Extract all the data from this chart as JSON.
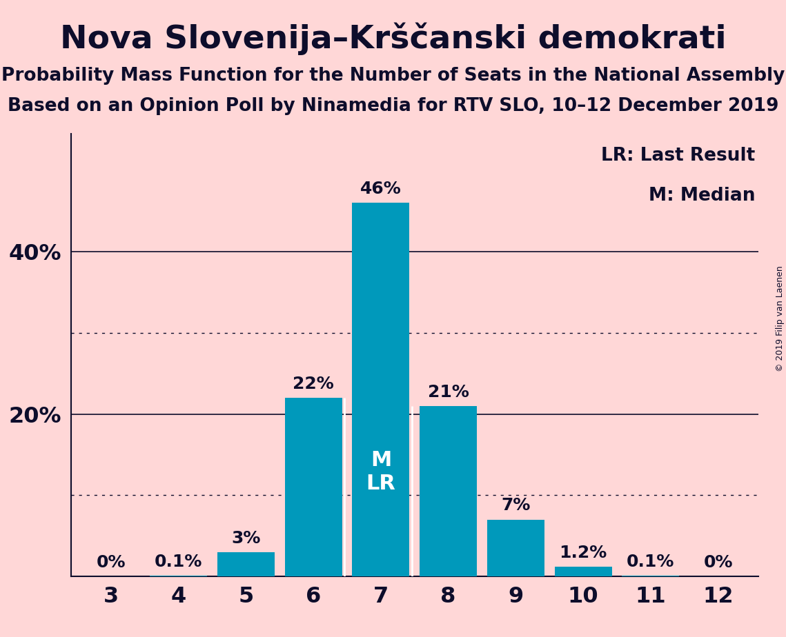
{
  "title": "Nova Slovenija–Krščanski demokrati",
  "subtitle1": "Probability Mass Function for the Number of Seats in the National Assembly",
  "subtitle2": "Based on an Opinion Poll by Ninamedia for RTV SLO, 10–12 December 2019",
  "copyright": "© 2019 Filip van Laenen",
  "seats": [
    3,
    4,
    5,
    6,
    7,
    8,
    9,
    10,
    11,
    12
  ],
  "values": [
    0.0,
    0.001,
    0.03,
    0.22,
    0.46,
    0.21,
    0.07,
    0.012,
    0.001,
    0.0
  ],
  "labels": [
    "0%",
    "0.1%",
    "3%",
    "22%",
    "46%",
    "21%",
    "7%",
    "1.2%",
    "0.1%",
    "0%"
  ],
  "bar_color": "#0099BB",
  "background_color": "#FFD7D7",
  "text_color": "#0d0d2b",
  "median_seat": 7,
  "last_result_seat": 7,
  "solid_gridlines": [
    0.2,
    0.4
  ],
  "dotted_gridlines": [
    0.1,
    0.3
  ],
  "legend_lr": "LR: Last Result",
  "legend_m": "M: Median",
  "title_fontsize": 34,
  "subtitle_fontsize": 19,
  "label_fontsize": 18,
  "axis_fontsize": 23,
  "legend_fontsize": 19,
  "ml_fontsize": 22
}
